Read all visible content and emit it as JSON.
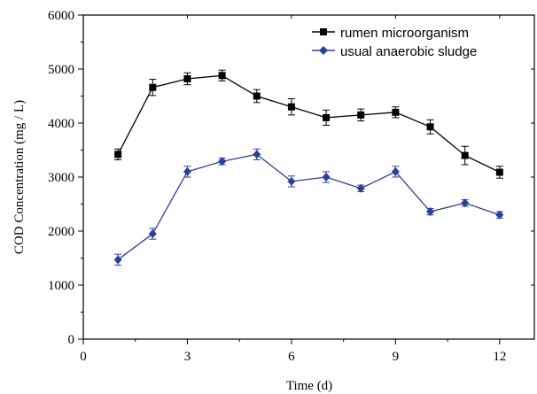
{
  "chart_data": {
    "type": "line",
    "title": "",
    "xlabel": "Time (d)",
    "ylabel": "COD Concentration (mg / L)",
    "xlim": [
      0,
      13
    ],
    "ylim": [
      0,
      6000
    ],
    "x_ticks": [
      0,
      3,
      6,
      9,
      12
    ],
    "y_ticks": [
      0,
      1000,
      2000,
      3000,
      4000,
      5000,
      6000
    ],
    "grid": false,
    "legend_position": "top-right",
    "x": [
      1,
      2,
      3,
      4,
      5,
      6,
      7,
      8,
      9,
      10,
      11,
      12
    ],
    "series": [
      {
        "name": "rumen microorganism",
        "color": "#000000",
        "marker": "square",
        "values": [
          3420,
          4660,
          4820,
          4880,
          4500,
          4300,
          4100,
          4150,
          4200,
          3930,
          3400,
          3090
        ],
        "errors": [
          100,
          150,
          110,
          100,
          120,
          150,
          140,
          110,
          100,
          130,
          170,
          110
        ]
      },
      {
        "name": "usual anaerobic sludge",
        "color": "#2b3fa0",
        "marker": "diamond",
        "values": [
          1470,
          1950,
          3100,
          3290,
          3420,
          2920,
          3000,
          2790,
          3100,
          2360,
          2520,
          2300
        ],
        "errors": [
          100,
          100,
          100,
          60,
          100,
          100,
          100,
          60,
          100,
          60,
          60,
          60
        ]
      }
    ]
  }
}
